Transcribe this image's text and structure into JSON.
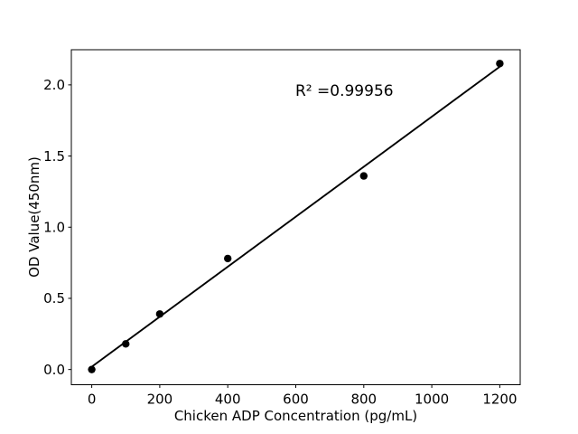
{
  "chart_data": {
    "type": "scatter",
    "title": "",
    "xlabel": "Chicken ADP Concentration (pg/mL)",
    "ylabel": "OD Value(450nm)",
    "annotation": "R² =0.99956",
    "x": [
      0,
      100,
      200,
      400,
      800,
      1200
    ],
    "y": [
      0.0,
      0.18,
      0.39,
      0.78,
      1.36,
      2.15
    ],
    "fit": {
      "type": "linear",
      "r_squared": 0.99956,
      "draw_range": [
        0,
        1200
      ]
    },
    "xlim": [
      -60,
      1260
    ],
    "ylim": [
      -0.107,
      2.247
    ],
    "x_ticks": {
      "values": [
        0,
        200,
        400,
        600,
        800,
        1000,
        1200
      ],
      "labels": [
        "0",
        "200",
        "400",
        "600",
        "800",
        "1000",
        "1200"
      ]
    },
    "y_ticks": {
      "values": [
        0.0,
        0.5,
        1.0,
        1.5,
        2.0
      ],
      "labels": [
        "0.0",
        "0.5",
        "1.0",
        "1.5",
        "2.0"
      ]
    },
    "grid": false,
    "legend": "none",
    "colors": {
      "marker": "#000000",
      "line": "#000000",
      "axes": "#000000",
      "text": "#000000",
      "background": "#ffffff"
    }
  }
}
